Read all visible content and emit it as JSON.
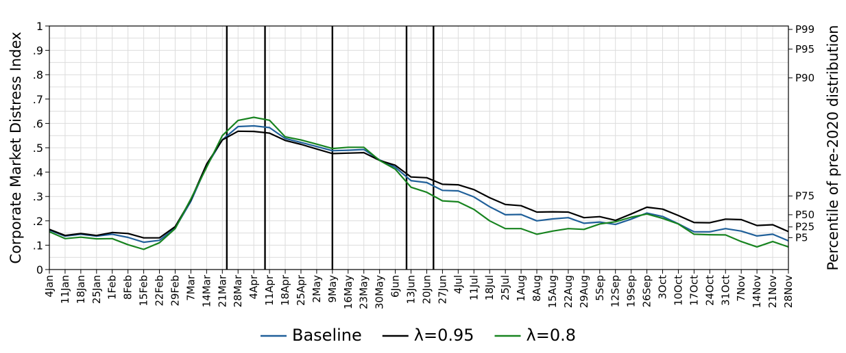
{
  "chart_data": {
    "type": "line",
    "ylabel": "Corporate Market Distress Index",
    "y2label": "Percentile of pre-2020 distribution",
    "ylim": [
      0,
      1
    ],
    "grid": true,
    "legend_position": "bottom-center",
    "y_ticks": [
      {
        "v": 0,
        "label": "0"
      },
      {
        "v": 0.1,
        "label": ".1"
      },
      {
        "v": 0.2,
        "label": ".2"
      },
      {
        "v": 0.3,
        "label": ".3"
      },
      {
        "v": 0.4,
        "label": ".4"
      },
      {
        "v": 0.5,
        "label": ".5"
      },
      {
        "v": 0.6,
        "label": ".6"
      },
      {
        "v": 0.7,
        "label": ".7"
      },
      {
        "v": 0.8,
        "label": ".8"
      },
      {
        "v": 0.9,
        "label": ".9"
      },
      {
        "v": 1,
        "label": "1"
      }
    ],
    "percentile_ticks": [
      {
        "v": 0.986,
        "label": "P99"
      },
      {
        "v": 0.905,
        "label": "P95"
      },
      {
        "v": 0.787,
        "label": "P90"
      },
      {
        "v": 0.302,
        "label": "P75"
      },
      {
        "v": 0.225,
        "label": "P50"
      },
      {
        "v": 0.175,
        "label": "P25"
      },
      {
        "v": 0.131,
        "label": "P5"
      }
    ],
    "categories": [
      "4Jan",
      "11Jan",
      "18Jan",
      "25Jan",
      "1Feb",
      "8Feb",
      "15Feb",
      "22Feb",
      "29Feb",
      "7Mar",
      "14Mar",
      "21Mar",
      "28Mar",
      "4Apr",
      "11Apr",
      "18Apr",
      "25Apr",
      "2May",
      "9May",
      "16May",
      "23May",
      "30May",
      "6Jun",
      "13Jun",
      "20Jun",
      "27Jun",
      "4Jul",
      "11Jul",
      "18Jul",
      "25Jul",
      "1Aug",
      "8Aug",
      "15Aug",
      "22Aug",
      "29Aug",
      "5Sep",
      "12Sep",
      "19Sep",
      "26Sep",
      "3Oct",
      "10Oct",
      "17Oct",
      "24Oct",
      "31Oct",
      "7Nov",
      "14Nov",
      "21Nov",
      "28Nov"
    ],
    "vlines": [
      "23Mar",
      "9Apr",
      "9May",
      "11Jun",
      "23Jun"
    ],
    "series": [
      {
        "name": "Baseline",
        "color": "#1f5f99",
        "values": [
          0.162,
          0.137,
          0.145,
          0.137,
          0.145,
          0.132,
          0.112,
          0.12,
          0.17,
          0.28,
          0.425,
          0.533,
          0.587,
          0.59,
          0.583,
          0.538,
          0.522,
          0.505,
          0.488,
          0.49,
          0.493,
          0.45,
          0.42,
          0.365,
          0.357,
          0.325,
          0.323,
          0.298,
          0.258,
          0.225,
          0.226,
          0.2,
          0.208,
          0.213,
          0.19,
          0.195,
          0.185,
          0.207,
          0.232,
          0.218,
          0.188,
          0.155,
          0.155,
          0.168,
          0.158,
          0.138,
          0.145,
          0.118
        ]
      },
      {
        "name": "λ=0.95",
        "color": "#000000",
        "values": [
          0.165,
          0.14,
          0.148,
          0.14,
          0.152,
          0.148,
          0.13,
          0.13,
          0.176,
          0.286,
          0.433,
          0.532,
          0.568,
          0.567,
          0.56,
          0.53,
          0.514,
          0.495,
          0.476,
          0.478,
          0.48,
          0.448,
          0.428,
          0.38,
          0.377,
          0.35,
          0.348,
          0.328,
          0.295,
          0.267,
          0.262,
          0.236,
          0.237,
          0.236,
          0.213,
          0.217,
          0.202,
          0.228,
          0.256,
          0.248,
          0.222,
          0.193,
          0.192,
          0.207,
          0.205,
          0.181,
          0.184,
          0.156
        ]
      },
      {
        "name": "λ=0.8",
        "color": "#17831f",
        "values": [
          0.155,
          0.127,
          0.133,
          0.126,
          0.127,
          0.102,
          0.083,
          0.11,
          0.168,
          0.29,
          0.42,
          0.55,
          0.612,
          0.625,
          0.613,
          0.545,
          0.532,
          0.515,
          0.497,
          0.502,
          0.502,
          0.448,
          0.412,
          0.338,
          0.317,
          0.282,
          0.278,
          0.247,
          0.2,
          0.168,
          0.168,
          0.145,
          0.158,
          0.168,
          0.165,
          0.187,
          0.196,
          0.215,
          0.228,
          0.21,
          0.187,
          0.145,
          0.143,
          0.142,
          0.115,
          0.093,
          0.115,
          0.093
        ]
      }
    ]
  }
}
